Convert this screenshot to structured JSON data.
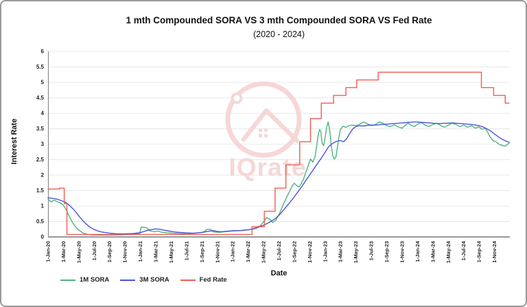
{
  "chart_data": {
    "type": "line",
    "title": "1 mth Compounded SORA VS 3 mth Compounded SORA VS Fed Rate",
    "subtitle": "(2020 - 2024)",
    "xlabel": "Date",
    "ylabel": "Interest Rate",
    "ylim": [
      0,
      6
    ],
    "y_tick_step": 0.5,
    "y_tick_labels": [
      "0",
      "0.5",
      "1",
      "1.5",
      "2",
      "2.5",
      "3",
      "3.5",
      "4",
      "4.5",
      "5",
      "5.5",
      "6"
    ],
    "x_tick_labels": [
      "1-Jan-20",
      "1-Mar-20",
      "1-May-20",
      "1-Jul-20",
      "1-Sep-20",
      "1-Nov-20",
      "1-Jan-21",
      "1-Mar-21",
      "1-May-21",
      "1-Jul-21",
      "1-Sep-21",
      "1-Nov-21",
      "1-Jan-22",
      "1-Mar-22",
      "1-May-22",
      "1-Jul-22",
      "1-Sep-22",
      "1-Nov-22",
      "1-Jan-23",
      "1-Mar-23",
      "1-May-23",
      "1-Jul-23",
      "1-Sep-23",
      "1-Nov-23",
      "1-Jan-24",
      "1-Mar-24",
      "1-May-24",
      "1-Jul-24",
      "1-Sep-24",
      "1-Nov-24"
    ],
    "x_domain_months": [
      0,
      60
    ],
    "x_tick_interval_months": 2,
    "grid": true,
    "legend_position": "bottom-left",
    "series": [
      {
        "name": "1M SORA",
        "color": "#4db380",
        "points": [
          [
            0,
            1.23
          ],
          [
            0.4,
            1.13
          ],
          [
            0.8,
            1.19
          ],
          [
            1.2,
            1.14
          ],
          [
            1.6,
            1.1
          ],
          [
            2.0,
            1.03
          ],
          [
            2.4,
            0.86
          ],
          [
            2.8,
            0.64
          ],
          [
            3.2,
            0.46
          ],
          [
            3.6,
            0.32
          ],
          [
            4.0,
            0.22
          ],
          [
            4.5,
            0.13
          ],
          [
            5.0,
            0.09
          ],
          [
            5.5,
            0.07
          ],
          [
            6.5,
            0.06
          ],
          [
            8,
            0.06
          ],
          [
            9.5,
            0.07
          ],
          [
            11,
            0.09
          ],
          [
            11.9,
            0.1
          ],
          [
            12.1,
            0.32
          ],
          [
            12.8,
            0.3
          ],
          [
            13.2,
            0.2
          ],
          [
            13.8,
            0.17
          ],
          [
            14.3,
            0.19
          ],
          [
            14.8,
            0.15
          ],
          [
            15.5,
            0.13
          ],
          [
            16.2,
            0.12
          ],
          [
            17,
            0.11
          ],
          [
            17.8,
            0.1
          ],
          [
            18.6,
            0.11
          ],
          [
            19.4,
            0.13
          ],
          [
            20.2,
            0.15
          ],
          [
            20.6,
            0.24
          ],
          [
            21.1,
            0.25
          ],
          [
            21.5,
            0.16
          ],
          [
            22.2,
            0.15
          ],
          [
            23,
            0.17
          ],
          [
            23.8,
            0.19
          ],
          [
            24.6,
            0.2
          ],
          [
            25.4,
            0.21
          ],
          [
            26.2,
            0.24
          ],
          [
            27,
            0.3
          ],
          [
            27.6,
            0.37
          ],
          [
            28.1,
            0.52
          ],
          [
            28.4,
            0.63
          ],
          [
            28.8,
            0.57
          ],
          [
            29.2,
            0.47
          ],
          [
            29.6,
            0.55
          ],
          [
            30.0,
            0.72
          ],
          [
            30.4,
            0.95
          ],
          [
            30.8,
            1.18
          ],
          [
            31.1,
            1.33
          ],
          [
            31.4,
            1.48
          ],
          [
            31.7,
            1.64
          ],
          [
            32.0,
            1.74
          ],
          [
            32.3,
            1.66
          ],
          [
            32.6,
            1.62
          ],
          [
            32.9,
            1.72
          ],
          [
            33.2,
            1.88
          ],
          [
            33.5,
            2.1
          ],
          [
            33.8,
            2.3
          ],
          [
            34.1,
            2.52
          ],
          [
            34.4,
            2.42
          ],
          [
            34.7,
            2.6
          ],
          [
            34.9,
            2.95
          ],
          [
            35.1,
            3.3
          ],
          [
            35.3,
            3.48
          ],
          [
            35.45,
            3.4
          ],
          [
            35.6,
            3.05
          ],
          [
            35.8,
            2.95
          ],
          [
            36.0,
            3.2
          ],
          [
            36.2,
            3.55
          ],
          [
            36.4,
            3.72
          ],
          [
            36.6,
            3.45
          ],
          [
            36.8,
            2.95
          ],
          [
            37.0,
            2.62
          ],
          [
            37.2,
            2.52
          ],
          [
            37.4,
            2.58
          ],
          [
            37.6,
            2.9
          ],
          [
            37.8,
            3.25
          ],
          [
            38.0,
            3.48
          ],
          [
            38.3,
            3.58
          ],
          [
            38.7,
            3.55
          ],
          [
            39.1,
            3.6
          ],
          [
            39.5,
            3.62
          ],
          [
            40,
            3.6
          ],
          [
            40.5,
            3.65
          ],
          [
            41,
            3.72
          ],
          [
            41.5,
            3.66
          ],
          [
            42,
            3.6
          ],
          [
            42.5,
            3.63
          ],
          [
            43,
            3.72
          ],
          [
            43.5,
            3.68
          ],
          [
            44,
            3.6
          ],
          [
            44.5,
            3.57
          ],
          [
            45,
            3.63
          ],
          [
            45.5,
            3.56
          ],
          [
            46,
            3.52
          ],
          [
            46.4,
            3.61
          ],
          [
            46.8,
            3.68
          ],
          [
            47.2,
            3.61
          ],
          [
            47.6,
            3.57
          ],
          [
            48,
            3.65
          ],
          [
            48.5,
            3.7
          ],
          [
            49,
            3.62
          ],
          [
            49.5,
            3.57
          ],
          [
            50,
            3.64
          ],
          [
            50.5,
            3.68
          ],
          [
            51,
            3.61
          ],
          [
            51.5,
            3.55
          ],
          [
            52,
            3.62
          ],
          [
            52.5,
            3.68
          ],
          [
            53,
            3.64
          ],
          [
            53.5,
            3.57
          ],
          [
            54,
            3.62
          ],
          [
            54.5,
            3.55
          ],
          [
            55,
            3.6
          ],
          [
            55.5,
            3.52
          ],
          [
            56,
            3.56
          ],
          [
            56.4,
            3.48
          ],
          [
            56.8,
            3.52
          ],
          [
            57.1,
            3.4
          ],
          [
            57.4,
            3.25
          ],
          [
            57.8,
            3.12
          ],
          [
            58.2,
            3.08
          ],
          [
            58.6,
            3.0
          ],
          [
            59.0,
            2.96
          ],
          [
            59.4,
            2.94
          ],
          [
            59.7,
            3.0
          ],
          [
            59.9,
            3.04
          ]
        ]
      },
      {
        "name": "3M SORA",
        "color": "#4a54d8",
        "points": [
          [
            0,
            1.27
          ],
          [
            0.6,
            1.25
          ],
          [
            1.2,
            1.22
          ],
          [
            1.8,
            1.17
          ],
          [
            2.2,
            1.13
          ],
          [
            2.6,
            1.06
          ],
          [
            3.0,
            0.97
          ],
          [
            3.5,
            0.84
          ],
          [
            4.0,
            0.68
          ],
          [
            4.5,
            0.53
          ],
          [
            5.0,
            0.41
          ],
          [
            5.5,
            0.31
          ],
          [
            6.0,
            0.24
          ],
          [
            6.5,
            0.19
          ],
          [
            7.0,
            0.16
          ],
          [
            7.5,
            0.14
          ],
          [
            8,
            0.12
          ],
          [
            9,
            0.1
          ],
          [
            10,
            0.1
          ],
          [
            11,
            0.11
          ],
          [
            12,
            0.14
          ],
          [
            12.5,
            0.18
          ],
          [
            13,
            0.22
          ],
          [
            13.5,
            0.24
          ],
          [
            14,
            0.26
          ],
          [
            14.5,
            0.25
          ],
          [
            15,
            0.22
          ],
          [
            15.5,
            0.2
          ],
          [
            16,
            0.18
          ],
          [
            16.5,
            0.16
          ],
          [
            17,
            0.15
          ],
          [
            17.5,
            0.14
          ],
          [
            18,
            0.13
          ],
          [
            19,
            0.12
          ],
          [
            19.5,
            0.13
          ],
          [
            20,
            0.15
          ],
          [
            20.5,
            0.17
          ],
          [
            21,
            0.19
          ],
          [
            21.5,
            0.2
          ],
          [
            22,
            0.18
          ],
          [
            22.5,
            0.17
          ],
          [
            23,
            0.18
          ],
          [
            24,
            0.2
          ],
          [
            25,
            0.21
          ],
          [
            26,
            0.23
          ],
          [
            26.5,
            0.25
          ],
          [
            27,
            0.28
          ],
          [
            27.5,
            0.33
          ],
          [
            28,
            0.38
          ],
          [
            28.5,
            0.44
          ],
          [
            29,
            0.51
          ],
          [
            29.5,
            0.59
          ],
          [
            30,
            0.7
          ],
          [
            30.5,
            0.84
          ],
          [
            31,
            0.99
          ],
          [
            31.5,
            1.14
          ],
          [
            32,
            1.3
          ],
          [
            32.5,
            1.47
          ],
          [
            33,
            1.64
          ],
          [
            33.5,
            1.83
          ],
          [
            34,
            2.01
          ],
          [
            34.5,
            2.19
          ],
          [
            35,
            2.37
          ],
          [
            35.5,
            2.55
          ],
          [
            36,
            2.74
          ],
          [
            36.4,
            2.9
          ],
          [
            36.8,
            3.0
          ],
          [
            37.2,
            3.06
          ],
          [
            37.6,
            3.1
          ],
          [
            38.0,
            3.12
          ],
          [
            38.4,
            3.08
          ],
          [
            38.8,
            3.18
          ],
          [
            39.2,
            3.35
          ],
          [
            39.6,
            3.5
          ],
          [
            40,
            3.57
          ],
          [
            40.5,
            3.6
          ],
          [
            41,
            3.59
          ],
          [
            41.5,
            3.61
          ],
          [
            42,
            3.62
          ],
          [
            42.5,
            3.62
          ],
          [
            43,
            3.63
          ],
          [
            43.5,
            3.64
          ],
          [
            44,
            3.65
          ],
          [
            44.5,
            3.66
          ],
          [
            45,
            3.67
          ],
          [
            45.5,
            3.68
          ],
          [
            46,
            3.69
          ],
          [
            46.5,
            3.7
          ],
          [
            47,
            3.71
          ],
          [
            47.5,
            3.72
          ],
          [
            48,
            3.72
          ],
          [
            48.5,
            3.71
          ],
          [
            49,
            3.7
          ],
          [
            49.5,
            3.69
          ],
          [
            50,
            3.68
          ],
          [
            50.5,
            3.67
          ],
          [
            51,
            3.67
          ],
          [
            51.5,
            3.68
          ],
          [
            52,
            3.68
          ],
          [
            52.5,
            3.69
          ],
          [
            53,
            3.68
          ],
          [
            53.5,
            3.67
          ],
          [
            54,
            3.66
          ],
          [
            54.5,
            3.65
          ],
          [
            55,
            3.64
          ],
          [
            55.5,
            3.62
          ],
          [
            56,
            3.6
          ],
          [
            56.5,
            3.56
          ],
          [
            57,
            3.5
          ],
          [
            57.5,
            3.43
          ],
          [
            58,
            3.33
          ],
          [
            58.5,
            3.24
          ],
          [
            59,
            3.16
          ],
          [
            59.5,
            3.1
          ],
          [
            59.9,
            3.07
          ]
        ]
      },
      {
        "name": "Fed Rate",
        "color": "#f15b52",
        "points": [
          [
            0,
            1.55
          ],
          [
            1.5,
            1.55
          ],
          [
            1.5,
            1.58
          ],
          [
            2.1,
            1.58
          ],
          [
            2.1,
            1.08
          ],
          [
            2.45,
            1.08
          ],
          [
            2.45,
            0.08
          ],
          [
            26.5,
            0.08
          ],
          [
            26.5,
            0.33
          ],
          [
            28.1,
            0.33
          ],
          [
            28.1,
            0.83
          ],
          [
            29.5,
            0.83
          ],
          [
            29.5,
            1.58
          ],
          [
            30.9,
            1.58
          ],
          [
            30.9,
            2.33
          ],
          [
            32.7,
            2.33
          ],
          [
            32.7,
            3.08
          ],
          [
            34.1,
            3.08
          ],
          [
            34.1,
            3.83
          ],
          [
            35.5,
            3.83
          ],
          [
            35.5,
            4.33
          ],
          [
            37.1,
            4.33
          ],
          [
            37.1,
            4.58
          ],
          [
            38.7,
            4.58
          ],
          [
            38.7,
            4.83
          ],
          [
            40.1,
            4.83
          ],
          [
            40.1,
            5.08
          ],
          [
            42.9,
            5.08
          ],
          [
            42.9,
            5.33
          ],
          [
            56.3,
            5.33
          ],
          [
            56.3,
            4.83
          ],
          [
            57.9,
            4.83
          ],
          [
            57.9,
            4.58
          ],
          [
            59.4,
            4.58
          ],
          [
            59.4,
            4.33
          ],
          [
            59.9,
            4.33
          ]
        ]
      }
    ]
  },
  "watermark": {
    "text": "IQrate",
    "color": "#f6d7d7"
  }
}
